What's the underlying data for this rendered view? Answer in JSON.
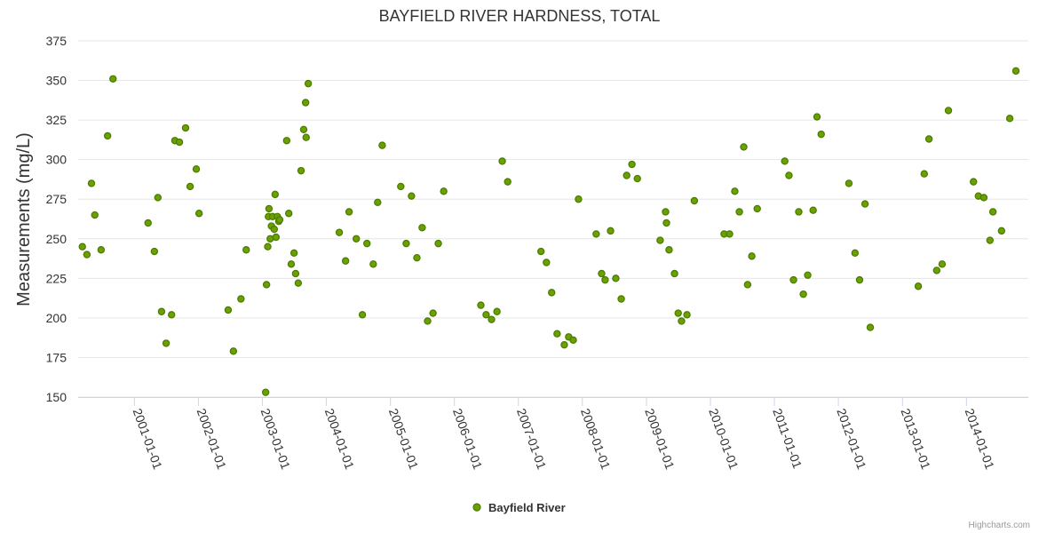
{
  "chart_data": {
    "type": "scatter",
    "title": "BAYFIELD RIVER HARDNESS, TOTAL",
    "ylabel": "Measurements (mg/L)",
    "xlabel": "",
    "ylim": [
      150,
      375
    ],
    "y_ticks": [
      "150",
      "175",
      "200",
      "225",
      "250",
      "275",
      "300",
      "325",
      "350",
      "375"
    ],
    "x_ticks": [
      "2001-01-01",
      "2002-01-01",
      "2003-01-01",
      "2004-01-01",
      "2005-01-01",
      "2006-01-01",
      "2007-01-01",
      "2008-01-01",
      "2009-01-01",
      "2010-01-01",
      "2011-01-01",
      "2012-01-01",
      "2013-01-01",
      "2014-01-01"
    ],
    "xlim": [
      "2000-02-15",
      "2014-12-20"
    ],
    "x_type": "datetime",
    "grid": true,
    "legend": "bottom-center",
    "colors": {
      "marker_fill": "#6aa000",
      "marker_stroke": "#4a7a00",
      "grid": "#e6e6e6"
    },
    "credits": "Highcharts.com",
    "series": [
      {
        "name": "Bayfield River",
        "points": [
          [
            "2000-03-10",
            245
          ],
          [
            "2000-04-05",
            240
          ],
          [
            "2000-05-01",
            285
          ],
          [
            "2000-05-20",
            265
          ],
          [
            "2000-06-25",
            243
          ],
          [
            "2000-08-01",
            315
          ],
          [
            "2000-09-01",
            351
          ],
          [
            "2001-03-20",
            260
          ],
          [
            "2001-04-25",
            242
          ],
          [
            "2001-05-15",
            276
          ],
          [
            "2001-06-05",
            204
          ],
          [
            "2001-07-01",
            184
          ],
          [
            "2001-08-01",
            202
          ],
          [
            "2001-08-20",
            312
          ],
          [
            "2001-09-15",
            311
          ],
          [
            "2001-10-20",
            320
          ],
          [
            "2001-11-15",
            283
          ],
          [
            "2001-12-20",
            294
          ],
          [
            "2002-01-05",
            266
          ],
          [
            "2002-06-20",
            205
          ],
          [
            "2002-07-20",
            179
          ],
          [
            "2002-09-01",
            212
          ],
          [
            "2002-10-01",
            243
          ],
          [
            "2003-01-20",
            153
          ],
          [
            "2003-01-25",
            221
          ],
          [
            "2003-02-01",
            245
          ],
          [
            "2003-02-05",
            264
          ],
          [
            "2003-02-08",
            269
          ],
          [
            "2003-02-15",
            250
          ],
          [
            "2003-02-22",
            258
          ],
          [
            "2003-03-01",
            264
          ],
          [
            "2003-03-10",
            256
          ],
          [
            "2003-03-15",
            278
          ],
          [
            "2003-03-20",
            251
          ],
          [
            "2003-03-28",
            264
          ],
          [
            "2003-04-05",
            261
          ],
          [
            "2003-04-10",
            262
          ],
          [
            "2003-05-20",
            312
          ],
          [
            "2003-06-01",
            266
          ],
          [
            "2003-06-15",
            234
          ],
          [
            "2003-07-01",
            241
          ],
          [
            "2003-07-10",
            228
          ],
          [
            "2003-07-25",
            222
          ],
          [
            "2003-08-10",
            293
          ],
          [
            "2003-08-25",
            319
          ],
          [
            "2003-09-05",
            336
          ],
          [
            "2003-09-08",
            314
          ],
          [
            "2003-09-20",
            348
          ],
          [
            "2004-03-15",
            254
          ],
          [
            "2004-04-20",
            236
          ],
          [
            "2004-05-10",
            267
          ],
          [
            "2004-06-20",
            250
          ],
          [
            "2004-07-25",
            202
          ],
          [
            "2004-08-20",
            247
          ],
          [
            "2004-09-25",
            234
          ],
          [
            "2004-10-20",
            273
          ],
          [
            "2004-11-15",
            309
          ],
          [
            "2005-03-01",
            283
          ],
          [
            "2005-04-01",
            247
          ],
          [
            "2005-05-01",
            277
          ],
          [
            "2005-06-01",
            238
          ],
          [
            "2005-07-01",
            257
          ],
          [
            "2005-08-01",
            198
          ],
          [
            "2005-09-01",
            203
          ],
          [
            "2005-10-01",
            247
          ],
          [
            "2005-11-01",
            280
          ],
          [
            "2006-06-01",
            208
          ],
          [
            "2006-07-01",
            202
          ],
          [
            "2006-08-01",
            199
          ],
          [
            "2006-09-01",
            204
          ],
          [
            "2006-10-01",
            299
          ],
          [
            "2006-11-01",
            286
          ],
          [
            "2007-05-10",
            242
          ],
          [
            "2007-06-10",
            235
          ],
          [
            "2007-07-10",
            216
          ],
          [
            "2007-08-10",
            190
          ],
          [
            "2007-09-20",
            183
          ],
          [
            "2007-10-15",
            188
          ],
          [
            "2007-11-10",
            186
          ],
          [
            "2007-12-10",
            275
          ],
          [
            "2008-03-20",
            253
          ],
          [
            "2008-04-20",
            228
          ],
          [
            "2008-05-10",
            224
          ],
          [
            "2008-06-10",
            255
          ],
          [
            "2008-07-10",
            225
          ],
          [
            "2008-08-10",
            212
          ],
          [
            "2008-09-10",
            290
          ],
          [
            "2008-10-10",
            297
          ],
          [
            "2008-11-10",
            288
          ],
          [
            "2009-03-20",
            249
          ],
          [
            "2009-04-20",
            267
          ],
          [
            "2009-04-25",
            260
          ],
          [
            "2009-05-10",
            243
          ],
          [
            "2009-06-10",
            228
          ],
          [
            "2009-07-01",
            203
          ],
          [
            "2009-07-20",
            198
          ],
          [
            "2009-08-20",
            202
          ],
          [
            "2009-10-01",
            274
          ],
          [
            "2010-03-20",
            253
          ],
          [
            "2010-04-20",
            253
          ],
          [
            "2010-05-20",
            280
          ],
          [
            "2010-06-15",
            267
          ],
          [
            "2010-07-10",
            308
          ],
          [
            "2010-08-01",
            221
          ],
          [
            "2010-08-25",
            239
          ],
          [
            "2010-09-25",
            269
          ],
          [
            "2011-03-01",
            299
          ],
          [
            "2011-03-25",
            290
          ],
          [
            "2011-04-20",
            224
          ],
          [
            "2011-05-20",
            267
          ],
          [
            "2011-06-15",
            215
          ],
          [
            "2011-07-10",
            227
          ],
          [
            "2011-08-10",
            268
          ],
          [
            "2011-09-01",
            327
          ],
          [
            "2011-09-25",
            316
          ],
          [
            "2012-03-01",
            285
          ],
          [
            "2012-04-05",
            241
          ],
          [
            "2012-05-01",
            224
          ],
          [
            "2012-06-01",
            272
          ],
          [
            "2012-07-01",
            194
          ],
          [
            "2013-04-01",
            220
          ],
          [
            "2013-05-05",
            291
          ],
          [
            "2013-06-01",
            313
          ],
          [
            "2013-07-15",
            230
          ],
          [
            "2013-08-15",
            234
          ],
          [
            "2013-09-20",
            331
          ],
          [
            "2014-02-10",
            286
          ],
          [
            "2014-03-10",
            277
          ],
          [
            "2014-04-10",
            276
          ],
          [
            "2014-05-15",
            249
          ],
          [
            "2014-06-01",
            267
          ],
          [
            "2014-07-20",
            255
          ],
          [
            "2014-09-05",
            326
          ],
          [
            "2014-10-10",
            356
          ]
        ]
      }
    ]
  }
}
